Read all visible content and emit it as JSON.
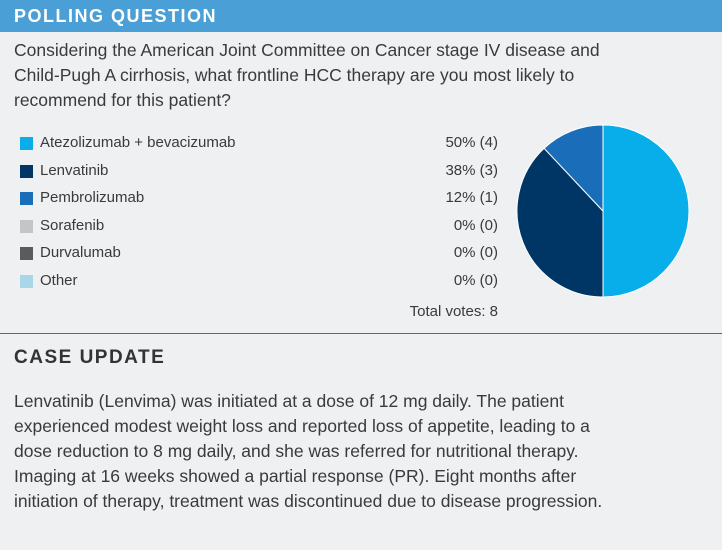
{
  "header": {
    "title": "POLLING QUESTION"
  },
  "question": {
    "lines": [
      "Considering the American Joint Committee on Cancer stage IV disease and",
      "Child-Pugh A cirrhosis, what frontline HCC therapy are you most likely to",
      "recommend for this patient?"
    ]
  },
  "chart_data": {
    "type": "pie",
    "categories": [
      "Atezolizumab + bevacizumab",
      "Lenvatinib",
      "Pembrolizumab",
      "Sorafenib",
      "Durvalumab",
      "Other"
    ],
    "values": [
      50,
      38,
      12,
      0,
      0,
      0
    ],
    "value_labels": [
      "50% (4)",
      "38% (3)",
      "12% (1)",
      "0% (0)",
      "0% (0)",
      "0% (0)"
    ],
    "colors": [
      "#08aeea",
      "#003665",
      "#1a6db8",
      "#c3c5c8",
      "#5a5b5d",
      "#a9d6e8"
    ],
    "total": "Total votes: 8"
  },
  "case_update": {
    "title": "CASE UPDATE",
    "lines": [
      "Lenvatinib (Lenvima) was initiated at a dose of 12 mg daily. The patient",
      "experienced modest weight loss and reported loss of appetite, leading to a",
      "dose reduction to 8 mg daily, and she was referred for nutritional therapy.",
      "Imaging at 16 weeks showed a partial response (PR). Eight months after",
      "initiation of therapy, treatment was discontinued due to disease progression."
    ]
  }
}
